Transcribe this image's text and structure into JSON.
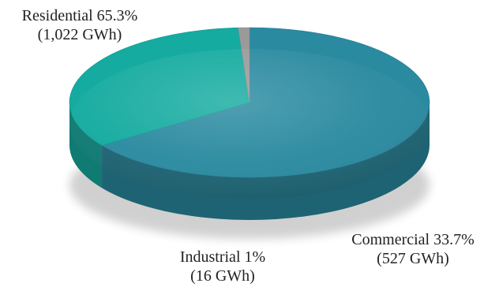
{
  "chart_data": {
    "type": "pie",
    "style": "3d",
    "title": "",
    "slices": [
      {
        "name": "Residential",
        "percent": 65.3,
        "value": 1022,
        "unit": "GWh",
        "color": "#2a8aa0",
        "label_line1": "Residential 65.3%",
        "label_line2": "(1,022 GWh)"
      },
      {
        "name": "Commercial",
        "percent": 33.7,
        "value": 527,
        "unit": "GWh",
        "color": "#15aba0",
        "label_line1": "Commercial 33.7%",
        "label_line2": "(527 GWh)"
      },
      {
        "name": "Industrial",
        "percent": 1,
        "value": 16,
        "unit": "GWh",
        "color": "#9a9a9a",
        "label_line1": "Industrial 1%",
        "label_line2": "(16 GWh)"
      }
    ],
    "legend": "none"
  }
}
